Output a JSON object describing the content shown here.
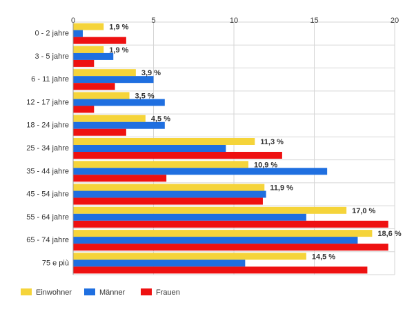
{
  "chart_data": {
    "type": "bar",
    "orientation": "horizontal",
    "categories": [
      "0 - 2 jahre",
      "3 - 5 jahre",
      "6 - 11 jahre",
      "12 - 17 jahre",
      "18 - 24 jahre",
      "25 - 34 jahre",
      "35 - 44 jahre",
      "45 - 54 jahre",
      "55 - 64 jahre",
      "65 - 74 jahre",
      "75 e più"
    ],
    "series": [
      {
        "name": "Einwohner",
        "color": "#f5d43a",
        "values": [
          1.9,
          1.9,
          3.9,
          3.5,
          4.5,
          11.3,
          10.9,
          11.9,
          17.0,
          18.6,
          14.5
        ],
        "labels": [
          "1,9 %",
          "1,9 %",
          "3,9 %",
          "3,5 %",
          "4,5 %",
          "11,3 %",
          "10,9 %",
          "11,9 %",
          "17,0 %",
          "18,6 %",
          "14,5 %"
        ]
      },
      {
        "name": "Männer",
        "color": "#1f6fe0",
        "values": [
          0.6,
          2.5,
          5.0,
          5.7,
          5.7,
          9.5,
          15.8,
          12.0,
          14.5,
          17.7,
          10.7
        ]
      },
      {
        "name": "Frauen",
        "color": "#ee1111",
        "values": [
          3.3,
          1.3,
          2.6,
          1.3,
          3.3,
          13.0,
          5.8,
          11.8,
          19.6,
          19.6,
          18.3
        ]
      }
    ],
    "xlim": [
      0,
      20
    ],
    "xticks": [
      0,
      5,
      10,
      15,
      20
    ],
    "tick_labels": [
      "0",
      "5",
      "10",
      "15",
      "20"
    ],
    "grid": true,
    "legend_position": "bottom-left",
    "title": "",
    "xlabel": "",
    "ylabel": ""
  }
}
